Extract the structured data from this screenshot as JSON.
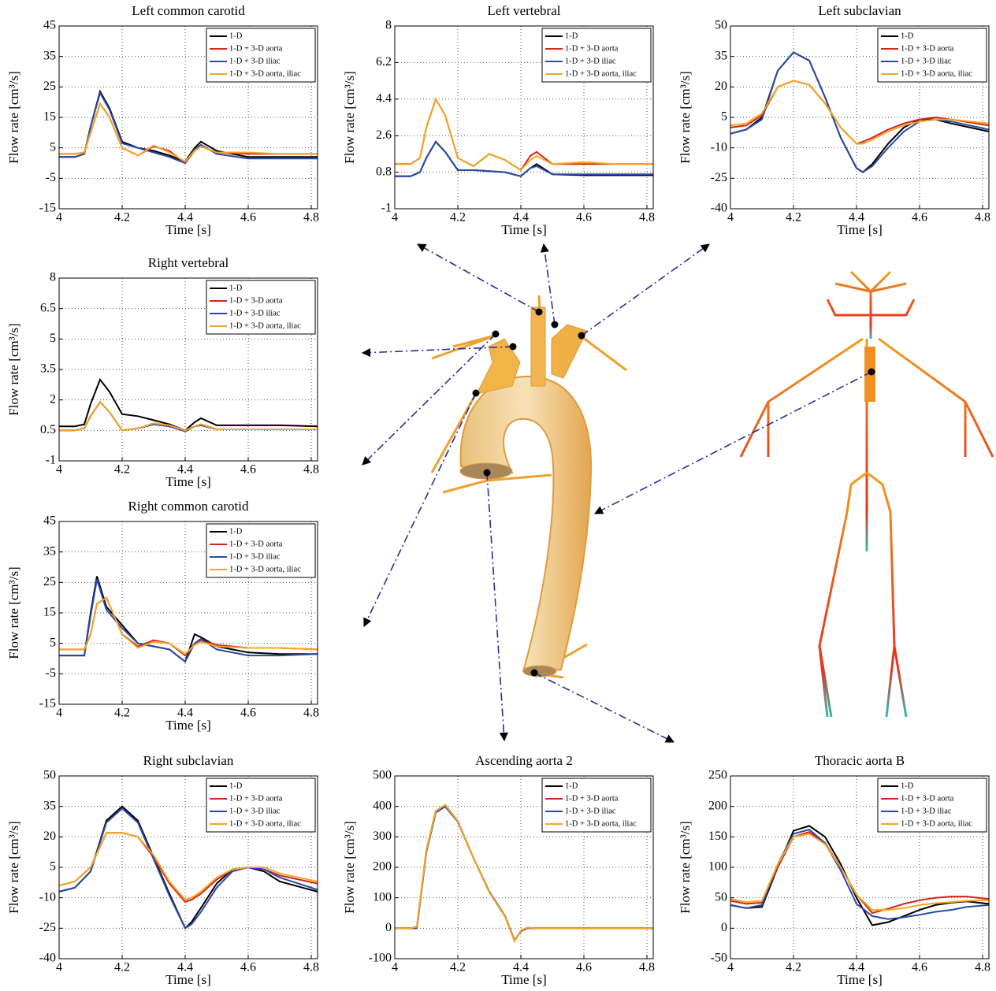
{
  "chart_data": [
    {
      "type": "line",
      "title": "Left common carotid",
      "x_label": "Time [s]",
      "y_label": "Flow rate [cm³/s]",
      "xlim": [
        4,
        4.82
      ],
      "xticks": [
        4,
        4.2,
        4.4,
        4.6,
        4.8
      ],
      "ylim": [
        -15,
        45
      ],
      "yticks": [
        -15,
        -5,
        5,
        15,
        25,
        35,
        45
      ],
      "grid": true,
      "legend": "upper right",
      "x": [
        4,
        4.05,
        4.08,
        4.1,
        4.13,
        4.16,
        4.2,
        4.25,
        4.3,
        4.35,
        4.4,
        4.43,
        4.45,
        4.5,
        4.6,
        4.7,
        4.82
      ],
      "series": [
        {
          "name": "1-D",
          "color": "#000000",
          "values": [
            2,
            2,
            3,
            12,
            23.5,
            18,
            7,
            5,
            4,
            2.5,
            0.5,
            5,
            7,
            4,
            2,
            2,
            2
          ]
        },
        {
          "name": "1-D + 3-D aorta",
          "color": "#d62418",
          "values": [
            3,
            3,
            3.5,
            10,
            19.5,
            15,
            5,
            2.5,
            5.5,
            4,
            0,
            4,
            5.5,
            3.5,
            3,
            3,
            3
          ]
        },
        {
          "name": "1-D + 3-D iliac",
          "color": "#2a4aa8",
          "values": [
            2,
            2,
            3,
            12,
            23,
            17.5,
            6.5,
            5,
            3.5,
            2,
            0,
            4.5,
            6,
            3,
            1.5,
            1.5,
            1.5
          ]
        },
        {
          "name": "1-D + 3-D aorta, iliac",
          "color": "#f5a623",
          "values": [
            3,
            3,
            3.5,
            10,
            19.5,
            15,
            5,
            2.5,
            5.8,
            3.5,
            0.5,
            4,
            5.5,
            3.5,
            3.5,
            3,
            3
          ]
        }
      ]
    },
    {
      "type": "line",
      "title": "Left vertebral",
      "x_label": "Time [s]",
      "y_label": "Flow rate [cm³/s]",
      "xlim": [
        4,
        4.82
      ],
      "xticks": [
        4,
        4.2,
        4.4,
        4.6,
        4.8
      ],
      "ylim": [
        -1,
        8
      ],
      "yticks": [
        -1,
        0.8,
        2.6,
        4.4,
        6.2,
        8
      ],
      "grid": true,
      "legend": "upper right",
      "x": [
        4,
        4.05,
        4.08,
        4.1,
        4.13,
        4.16,
        4.2,
        4.25,
        4.3,
        4.35,
        4.4,
        4.43,
        4.45,
        4.5,
        4.6,
        4.7,
        4.82
      ],
      "series": [
        {
          "name": "1-D",
          "color": "#000000",
          "values": [
            0.6,
            0.6,
            0.8,
            1.5,
            2.3,
            1.8,
            0.9,
            0.9,
            0.85,
            0.8,
            0.6,
            1,
            1.2,
            0.7,
            0.65,
            0.65,
            0.65
          ]
        },
        {
          "name": "1-D + 3-D aorta",
          "color": "#d62418",
          "values": [
            1.2,
            1.2,
            1.5,
            3,
            4.4,
            3.6,
            1.5,
            1.1,
            1.7,
            1.4,
            0.9,
            1.6,
            1.8,
            1.2,
            1.2,
            1.2,
            1.2
          ]
        },
        {
          "name": "1-D + 3-D iliac",
          "color": "#2a4aa8",
          "values": [
            0.6,
            0.6,
            0.8,
            1.5,
            2.3,
            1.8,
            0.9,
            0.9,
            0.85,
            0.8,
            0.6,
            1,
            1.1,
            0.7,
            0.7,
            0.7,
            0.7
          ]
        },
        {
          "name": "1-D + 3-D aorta, iliac",
          "color": "#f5a623",
          "values": [
            1.2,
            1.2,
            1.5,
            3,
            4.4,
            3.6,
            1.5,
            1.1,
            1.7,
            1.4,
            0.9,
            1.4,
            1.6,
            1.2,
            1.3,
            1.2,
            1.2
          ]
        }
      ]
    },
    {
      "type": "line",
      "title": "Left subclavian",
      "x_label": "Time [s]",
      "y_label": "Flow rate [cm³/s]",
      "xlim": [
        4,
        4.82
      ],
      "xticks": [
        4,
        4.2,
        4.4,
        4.6,
        4.8
      ],
      "ylim": [
        -40,
        50
      ],
      "yticks": [
        -40,
        -25,
        -10,
        5,
        20,
        35,
        50
      ],
      "grid": true,
      "legend": "upper right",
      "x": [
        4,
        4.05,
        4.1,
        4.15,
        4.2,
        4.25,
        4.3,
        4.35,
        4.4,
        4.42,
        4.45,
        4.5,
        4.55,
        4.6,
        4.65,
        4.7,
        4.82
      ],
      "series": [
        {
          "name": "1-D",
          "color": "#000000",
          "values": [
            -3,
            -1,
            5,
            28,
            37,
            33,
            15,
            -5,
            -20,
            -22,
            -18,
            -8,
            0,
            4,
            4,
            2,
            -2
          ]
        },
        {
          "name": "1-D + 3-D aorta",
          "color": "#d62418",
          "values": [
            0,
            1,
            6,
            20,
            23,
            21,
            12,
            0,
            -8,
            -7,
            -5,
            -1,
            2,
            4,
            5,
            4,
            1
          ]
        },
        {
          "name": "1-D + 3-D iliac",
          "color": "#2a4aa8",
          "values": [
            -3,
            -1,
            4,
            28,
            37,
            33,
            15,
            -5,
            -20,
            -22,
            -19,
            -10,
            -2,
            3,
            4,
            3,
            -1
          ]
        },
        {
          "name": "1-D + 3-D aorta, iliac",
          "color": "#f5a623",
          "values": [
            1,
            2,
            7,
            20,
            23,
            21,
            12,
            0,
            -8,
            -8,
            -6,
            -2,
            1,
            3,
            4,
            4,
            2
          ]
        }
      ]
    },
    {
      "type": "line",
      "title": "Right vertebral",
      "x_label": "Time [s]",
      "y_label": "Flow rate [cm³/s]",
      "xlim": [
        4,
        4.82
      ],
      "xticks": [
        4,
        4.2,
        4.4,
        4.6,
        4.8
      ],
      "ylim": [
        -1,
        8
      ],
      "yticks": [
        -1,
        0.5,
        2,
        3.5,
        5,
        6.5,
        8
      ],
      "grid": true,
      "legend": "upper right",
      "x": [
        4,
        4.05,
        4.08,
        4.1,
        4.13,
        4.16,
        4.2,
        4.25,
        4.3,
        4.35,
        4.4,
        4.43,
        4.45,
        4.5,
        4.6,
        4.7,
        4.82
      ],
      "series": [
        {
          "name": "1-D",
          "color": "#000000",
          "values": [
            0.7,
            0.7,
            0.8,
            1.8,
            3,
            2.4,
            1.3,
            1.2,
            1,
            0.8,
            0.5,
            0.9,
            1.1,
            0.75,
            0.75,
            0.75,
            0.7
          ]
        },
        {
          "name": "1-D + 3-D aorta",
          "color": "#d62418",
          "values": [
            0.5,
            0.5,
            0.6,
            1.2,
            1.9,
            1.4,
            0.5,
            0.6,
            0.8,
            0.75,
            0.5,
            0.7,
            0.8,
            0.55,
            0.55,
            0.55,
            0.55
          ]
        },
        {
          "name": "1-D + 3-D iliac",
          "color": "#2a4aa8",
          "values": [
            0.5,
            0.5,
            0.6,
            1.2,
            1.9,
            1.4,
            0.5,
            0.6,
            0.8,
            0.7,
            0.45,
            0.7,
            0.75,
            0.55,
            0.55,
            0.55,
            0.55
          ]
        },
        {
          "name": "1-D + 3-D aorta, iliac",
          "color": "#f5a623",
          "values": [
            0.5,
            0.5,
            0.6,
            1.2,
            1.9,
            1.4,
            0.5,
            0.6,
            0.85,
            0.75,
            0.5,
            0.7,
            0.8,
            0.55,
            0.55,
            0.55,
            0.55
          ]
        }
      ]
    },
    {
      "type": "line",
      "title": "Right common carotid",
      "x_label": "Time [s]",
      "y_label": "Flow rate [cm³/s]",
      "xlim": [
        4,
        4.82
      ],
      "xticks": [
        4,
        4.2,
        4.4,
        4.6,
        4.8
      ],
      "ylim": [
        -15,
        45
      ],
      "yticks": [
        -15,
        -5,
        5,
        15,
        25,
        35,
        45
      ],
      "grid": true,
      "legend": "upper right",
      "x": [
        4,
        4.05,
        4.08,
        4.1,
        4.12,
        4.15,
        4.2,
        4.25,
        4.3,
        4.35,
        4.4,
        4.43,
        4.45,
        4.5,
        4.6,
        4.7,
        4.82
      ],
      "series": [
        {
          "name": "1-D",
          "color": "#000000",
          "values": [
            1,
            1,
            1,
            15,
            27,
            17,
            11,
            5,
            4,
            3,
            -1,
            8,
            7,
            4,
            2,
            1.5,
            1.5
          ]
        },
        {
          "name": "1-D + 3-D aorta",
          "color": "#d62418",
          "values": [
            3,
            3,
            3,
            8,
            18,
            20,
            8,
            4,
            6,
            5,
            1,
            5,
            6,
            4.5,
            3.5,
            3.5,
            3
          ]
        },
        {
          "name": "1-D + 3-D iliac",
          "color": "#2a4aa8",
          "values": [
            1,
            1,
            1,
            14,
            26,
            16,
            10,
            5,
            4,
            3,
            -1,
            5,
            6.5,
            3,
            1,
            1,
            1.5
          ]
        },
        {
          "name": "1-D + 3-D aorta, iliac",
          "color": "#f5a623",
          "values": [
            3,
            3,
            3,
            8,
            18,
            20,
            8,
            3.5,
            5.5,
            5,
            1.5,
            4.5,
            5.5,
            4,
            3.5,
            3.5,
            3
          ]
        }
      ]
    },
    {
      "type": "line",
      "title": "Right subclavian",
      "x_label": "Time [s]",
      "y_label": "Flow rate [cm³/s]",
      "xlim": [
        4,
        4.82
      ],
      "xticks": [
        4,
        4.2,
        4.4,
        4.6,
        4.8
      ],
      "ylim": [
        -40,
        50
      ],
      "yticks": [
        -40,
        -25,
        -10,
        5,
        20,
        35,
        50
      ],
      "grid": true,
      "legend": "upper right",
      "x": [
        4,
        4.05,
        4.1,
        4.15,
        4.2,
        4.25,
        4.3,
        4.35,
        4.4,
        4.42,
        4.45,
        4.5,
        4.55,
        4.6,
        4.65,
        4.7,
        4.82
      ],
      "series": [
        {
          "name": "1-D",
          "color": "#000000",
          "values": [
            -7,
            -5,
            3,
            28,
            35,
            28,
            10,
            -8,
            -25,
            -22,
            -15,
            -3,
            4,
            5,
            3,
            -2,
            -7
          ]
        },
        {
          "name": "1-D + 3-D aorta",
          "color": "#d62418",
          "values": [
            -4,
            -2,
            5,
            22,
            22,
            20,
            10,
            -3,
            -12,
            -11,
            -8,
            -1,
            4,
            5,
            4,
            1,
            -3
          ]
        },
        {
          "name": "1-D + 3-D iliac",
          "color": "#2a4aa8",
          "values": [
            -7,
            -5,
            3,
            27,
            34,
            27,
            9,
            -9,
            -25,
            -23,
            -17,
            -5,
            3,
            5,
            4,
            0,
            -6
          ]
        },
        {
          "name": "1-D + 3-D aorta, iliac",
          "color": "#f5a623",
          "values": [
            -4,
            -2,
            5,
            22,
            22,
            20,
            11,
            -2,
            -11,
            -10,
            -7,
            0,
            4,
            5,
            5,
            2,
            -2
          ]
        }
      ]
    },
    {
      "type": "line",
      "title": "Ascending aorta 2",
      "x_label": "Time [s]",
      "y_label": "Flow rate [cm³/s]",
      "xlim": [
        4,
        4.82
      ],
      "xticks": [
        4,
        4.2,
        4.4,
        4.6,
        4.8
      ],
      "ylim": [
        -100,
        500
      ],
      "yticks": [
        -100,
        0,
        100,
        200,
        300,
        400,
        500
      ],
      "grid": true,
      "legend": "upper right",
      "x": [
        4,
        4.05,
        4.07,
        4.1,
        4.13,
        4.16,
        4.2,
        4.25,
        4.3,
        4.35,
        4.38,
        4.4,
        4.42,
        4.45,
        4.5,
        4.6,
        4.82
      ],
      "series": [
        {
          "name": "1-D",
          "color": "#000000",
          "values": [
            0,
            0,
            0,
            250,
            380,
            400,
            350,
            230,
            120,
            40,
            -40,
            -10,
            0,
            0,
            0,
            0,
            0
          ]
        },
        {
          "name": "1-D + 3-D aorta",
          "color": "#d62418",
          "values": [
            0,
            0,
            5,
            255,
            385,
            405,
            352,
            230,
            118,
            38,
            -42,
            -8,
            2,
            0,
            0,
            0,
            0
          ]
        },
        {
          "name": "1-D + 3-D iliac",
          "color": "#2a4aa8",
          "values": [
            0,
            0,
            0,
            250,
            380,
            400,
            350,
            230,
            120,
            40,
            -40,
            -10,
            0,
            0,
            0,
            0,
            0
          ]
        },
        {
          "name": "1-D + 3-D aorta, iliac",
          "color": "#f5a623",
          "values": [
            0,
            0,
            5,
            255,
            385,
            405,
            352,
            230,
            118,
            38,
            -42,
            -8,
            2,
            0,
            0,
            0,
            0
          ]
        }
      ]
    },
    {
      "type": "line",
      "title": "Thoracic aorta B",
      "x_label": "Time [s]",
      "y_label": "Flow rate [cm³/s]",
      "xlim": [
        4,
        4.82
      ],
      "xticks": [
        4,
        4.2,
        4.4,
        4.6,
        4.8
      ],
      "ylim": [
        -50,
        250
      ],
      "yticks": [
        -50,
        0,
        50,
        100,
        150,
        200,
        250
      ],
      "grid": true,
      "legend": "upper right",
      "x": [
        4,
        4.05,
        4.1,
        4.15,
        4.2,
        4.25,
        4.3,
        4.35,
        4.4,
        4.45,
        4.5,
        4.55,
        4.6,
        4.65,
        4.7,
        4.75,
        4.82
      ],
      "series": [
        {
          "name": "1-D",
          "color": "#000000",
          "values": [
            38,
            33,
            35,
            100,
            160,
            168,
            150,
            105,
            50,
            5,
            10,
            20,
            30,
            38,
            42,
            44,
            40
          ]
        },
        {
          "name": "1-D + 3-D aorta",
          "color": "#d62418",
          "values": [
            45,
            40,
            42,
            100,
            150,
            158,
            140,
            100,
            55,
            25,
            32,
            40,
            46,
            50,
            52,
            52,
            48
          ]
        },
        {
          "name": "1-D + 3-D iliac",
          "color": "#2a4aa8",
          "values": [
            38,
            33,
            38,
            105,
            155,
            162,
            140,
            95,
            40,
            20,
            15,
            18,
            22,
            27,
            30,
            35,
            38
          ]
        },
        {
          "name": "1-D + 3-D aorta, iliac",
          "color": "#f5a623",
          "values": [
            48,
            43,
            45,
            105,
            150,
            155,
            138,
            100,
            55,
            30,
            30,
            33,
            38,
            41,
            43,
            45,
            46
          ]
        }
      ]
    }
  ]
}
